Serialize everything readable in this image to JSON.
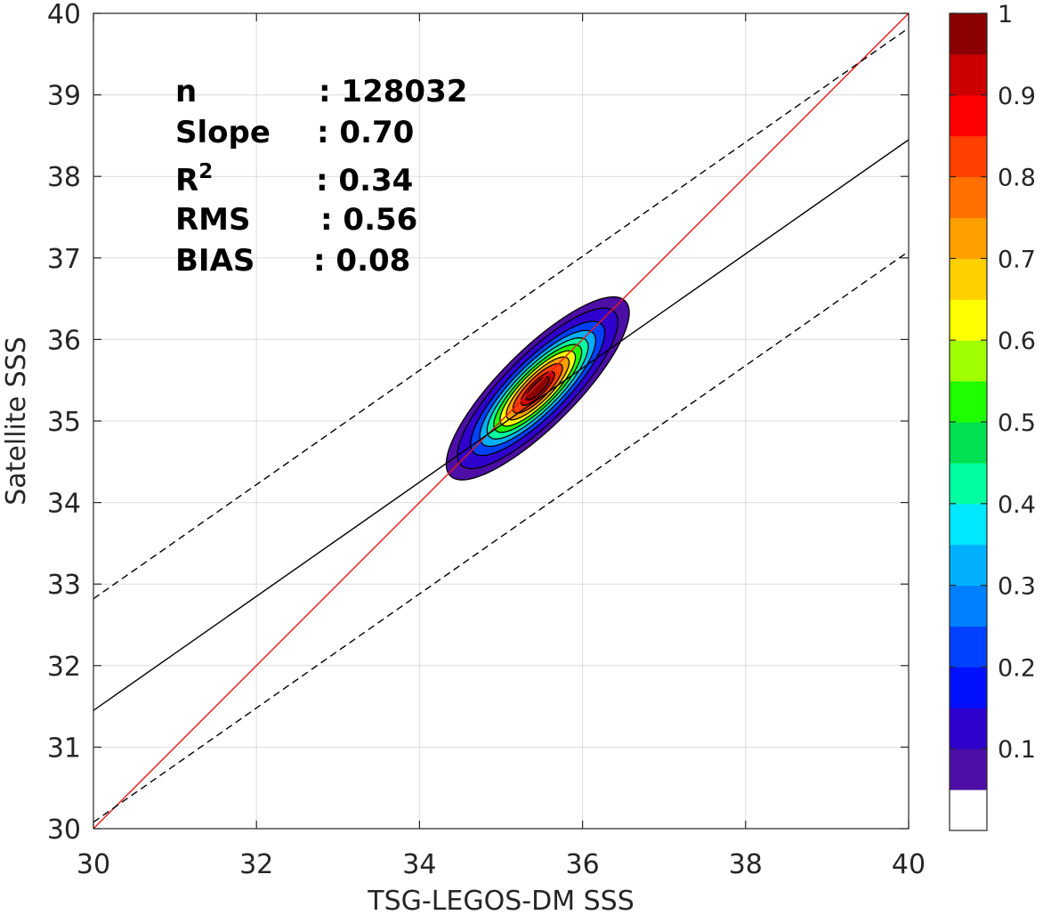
{
  "chart_data": {
    "type": "contour",
    "xlabel": "TSG-LEGOS-DM SSS",
    "ylabel": "Satellite SSS",
    "xlim": [
      30,
      40
    ],
    "ylim": [
      30,
      40
    ],
    "xticks": [
      30,
      32,
      34,
      36,
      38,
      40
    ],
    "yticks": [
      30,
      31,
      32,
      33,
      34,
      35,
      36,
      37,
      38,
      39,
      40
    ],
    "grid": true,
    "stats": [
      {
        "label": "n",
        "value": ": 128032"
      },
      {
        "label": "Slope",
        "value": ": 0.70"
      },
      {
        "label": "R",
        "sup": "2",
        "value": ": 0.34"
      },
      {
        "label": "RMS",
        "value": ": 0.56"
      },
      {
        "label": "BIAS",
        "value": ": 0.08"
      }
    ],
    "lines": [
      {
        "role": "one-to-one",
        "color": "#e41a1c",
        "style": "solid",
        "slope": 1.0,
        "intercept": 0.0
      },
      {
        "role": "regression",
        "color": "#000000",
        "style": "solid",
        "slope": 0.7,
        "intercept": 10.45
      },
      {
        "role": "upper-bound",
        "color": "#000000",
        "style": "dashed",
        "slope": 0.7,
        "intercept": 11.82
      },
      {
        "role": "lower-bound",
        "color": "#000000",
        "style": "dashed",
        "slope": 0.7,
        "intercept": 9.08
      }
    ],
    "density": {
      "center": [
        35.45,
        35.4
      ],
      "axis_angle_deg": 45,
      "major_sd": 0.62,
      "minor_sd": 0.19,
      "levels": [
        0.05,
        0.1,
        0.2,
        0.3,
        0.4,
        0.5,
        0.6,
        0.7,
        0.8,
        0.9,
        0.95
      ]
    },
    "colorbar": {
      "ticks": [
        "0.1",
        "0.2",
        "0.3",
        "0.4",
        "0.5",
        "0.6",
        "0.7",
        "0.8",
        "0.9",
        "1"
      ],
      "bins": [
        {
          "min": 0.0,
          "max": 0.05,
          "color": "#ffffff"
        },
        {
          "min": 0.05,
          "max": 0.1,
          "color": "#4d0fa6"
        },
        {
          "min": 0.1,
          "max": 0.15,
          "color": "#3000cc"
        },
        {
          "min": 0.15,
          "max": 0.2,
          "color": "#0010ff"
        },
        {
          "min": 0.2,
          "max": 0.25,
          "color": "#0040ff"
        },
        {
          "min": 0.25,
          "max": 0.3,
          "color": "#0080ff"
        },
        {
          "min": 0.3,
          "max": 0.35,
          "color": "#00b0ff"
        },
        {
          "min": 0.35,
          "max": 0.4,
          "color": "#00e8ff"
        },
        {
          "min": 0.4,
          "max": 0.45,
          "color": "#00ffa0"
        },
        {
          "min": 0.45,
          "max": 0.5,
          "color": "#00e050"
        },
        {
          "min": 0.5,
          "max": 0.55,
          "color": "#20ff00"
        },
        {
          "min": 0.55,
          "max": 0.6,
          "color": "#a0ff00"
        },
        {
          "min": 0.6,
          "max": 0.65,
          "color": "#ffff00"
        },
        {
          "min": 0.65,
          "max": 0.7,
          "color": "#ffd000"
        },
        {
          "min": 0.7,
          "max": 0.75,
          "color": "#ffa000"
        },
        {
          "min": 0.75,
          "max": 0.8,
          "color": "#ff7000"
        },
        {
          "min": 0.8,
          "max": 0.85,
          "color": "#ff4000"
        },
        {
          "min": 0.85,
          "max": 0.9,
          "color": "#ff0000"
        },
        {
          "min": 0.9,
          "max": 0.95,
          "color": "#cc0000"
        },
        {
          "min": 0.95,
          "max": 1.0,
          "color": "#8b0000"
        }
      ]
    }
  }
}
